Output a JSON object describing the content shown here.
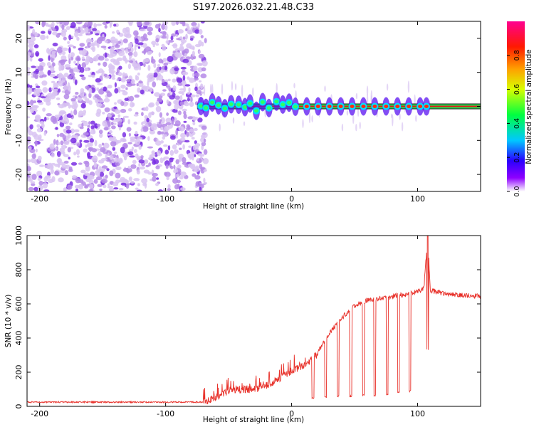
{
  "title": "S197.2026.032.21.48.C33",
  "colors": {
    "snr_line": "#e8312a",
    "speckle_light": "#d9c4f2",
    "speckle_mid": "#b58ae8",
    "speckle_dark": "#7a2fe3",
    "axis": "#000000"
  },
  "chart_data": [
    {
      "type": "heatmap",
      "xlabel": "Height of straight line (km)",
      "ylabel": "Frequency (Hz)",
      "xlim": [
        -210,
        150
      ],
      "ylim": [
        -25,
        25
      ],
      "xticks": [
        -200,
        -100,
        0,
        100
      ],
      "yticks": [
        -20,
        -10,
        0,
        10,
        20
      ],
      "xtick_labels": [
        "-200",
        "-100",
        "0",
        "100"
      ],
      "ytick_labels": [
        "-20",
        "-10",
        "0",
        "10",
        "20"
      ],
      "noise_region_x": [
        -210,
        -75
      ],
      "signal_line": {
        "x": [
          -75,
          150
        ],
        "frequency": 0
      },
      "signal_blobs_x": [
        -72,
        -68,
        -63,
        -58,
        -53,
        -48,
        -42,
        -37,
        -33,
        -28,
        -23,
        -18,
        -12,
        -7,
        -2,
        3,
        12,
        21,
        30,
        39,
        48,
        57,
        66,
        75,
        84,
        93,
        102,
        107
      ]
    },
    {
      "type": "colorbar",
      "label": "Normalized spectral amplitude",
      "range": [
        0,
        1
      ],
      "ticks": [
        0.0,
        0.2,
        0.4,
        0.6,
        0.8
      ],
      "tick_labels": [
        "0.0",
        "0.2",
        "0.4",
        "0.6",
        "0.8"
      ],
      "colormap": [
        "#ffffff",
        "#8e00ff",
        "#0000ff",
        "#00ffff",
        "#00ff00",
        "#ffff00",
        "#ff8000",
        "#ff0000",
        "#ff0080"
      ]
    },
    {
      "type": "line",
      "xlabel": "Height of straight line (km)",
      "ylabel": "SNR (10 * v/v)",
      "xlim": [
        -210,
        150
      ],
      "ylim": [
        0,
        1000
      ],
      "xticks": [
        -200,
        -100,
        0,
        100
      ],
      "yticks": [
        0,
        200,
        400,
        600,
        800,
        1000
      ],
      "xtick_labels": [
        "-200",
        "-100",
        "0",
        "100"
      ],
      "ytick_labels": [
        "0",
        "200",
        "400",
        "600",
        "800",
        "1000"
      ],
      "series": [
        {
          "name": "SNR",
          "x": [
            -210,
            -180,
            -150,
            -120,
            -90,
            -70,
            -60,
            -50,
            -40,
            -30,
            -20,
            -10,
            0,
            10,
            20,
            25,
            30,
            40,
            50,
            60,
            70,
            80,
            90,
            100,
            105,
            108,
            110,
            120,
            130,
            140,
            150
          ],
          "y": [
            25,
            25,
            25,
            25,
            25,
            25,
            55,
            90,
            100,
            100,
            120,
            160,
            210,
            240,
            300,
            370,
            430,
            520,
            590,
            620,
            630,
            645,
            655,
            670,
            690,
            1000,
            680,
            660,
            655,
            650,
            645
          ]
        }
      ],
      "dropouts": [
        {
          "x": 17,
          "y": 45
        },
        {
          "x": 27,
          "y": 50
        },
        {
          "x": 37,
          "y": 55
        },
        {
          "x": 47,
          "y": 55
        },
        {
          "x": 57,
          "y": 60
        },
        {
          "x": 66,
          "y": 60
        },
        {
          "x": 76,
          "y": 65
        },
        {
          "x": 85,
          "y": 75
        },
        {
          "x": 94,
          "y": 85
        },
        {
          "x": 108,
          "y": 330
        }
      ]
    }
  ]
}
